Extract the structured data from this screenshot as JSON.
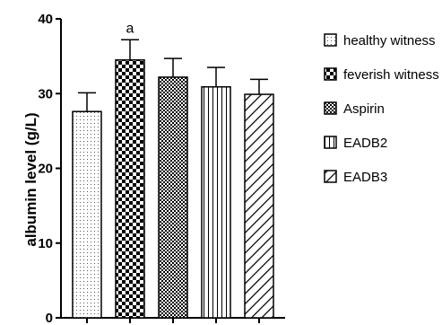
{
  "chart_data": {
    "type": "bar",
    "title": "",
    "xlabel": "",
    "ylabel": "albumin level (g/L)",
    "ylim": [
      0,
      40
    ],
    "yticks": [
      0,
      10,
      20,
      30,
      40
    ],
    "categories": [
      "healthy witness",
      "feverish witness",
      "Aspirin",
      "EADB2",
      "EADB3"
    ],
    "values": [
      27.6,
      34.5,
      32.2,
      30.9,
      29.9
    ],
    "errors": [
      2.5,
      2.7,
      2.5,
      2.6,
      2.0
    ],
    "annotations": [
      {
        "category": "feverish witness",
        "text": "a"
      }
    ],
    "patterns": [
      "dots",
      "checker",
      "checker-fine",
      "vertical-lines",
      "diagonal-lines"
    ],
    "legend_position": "right",
    "grid": false
  }
}
